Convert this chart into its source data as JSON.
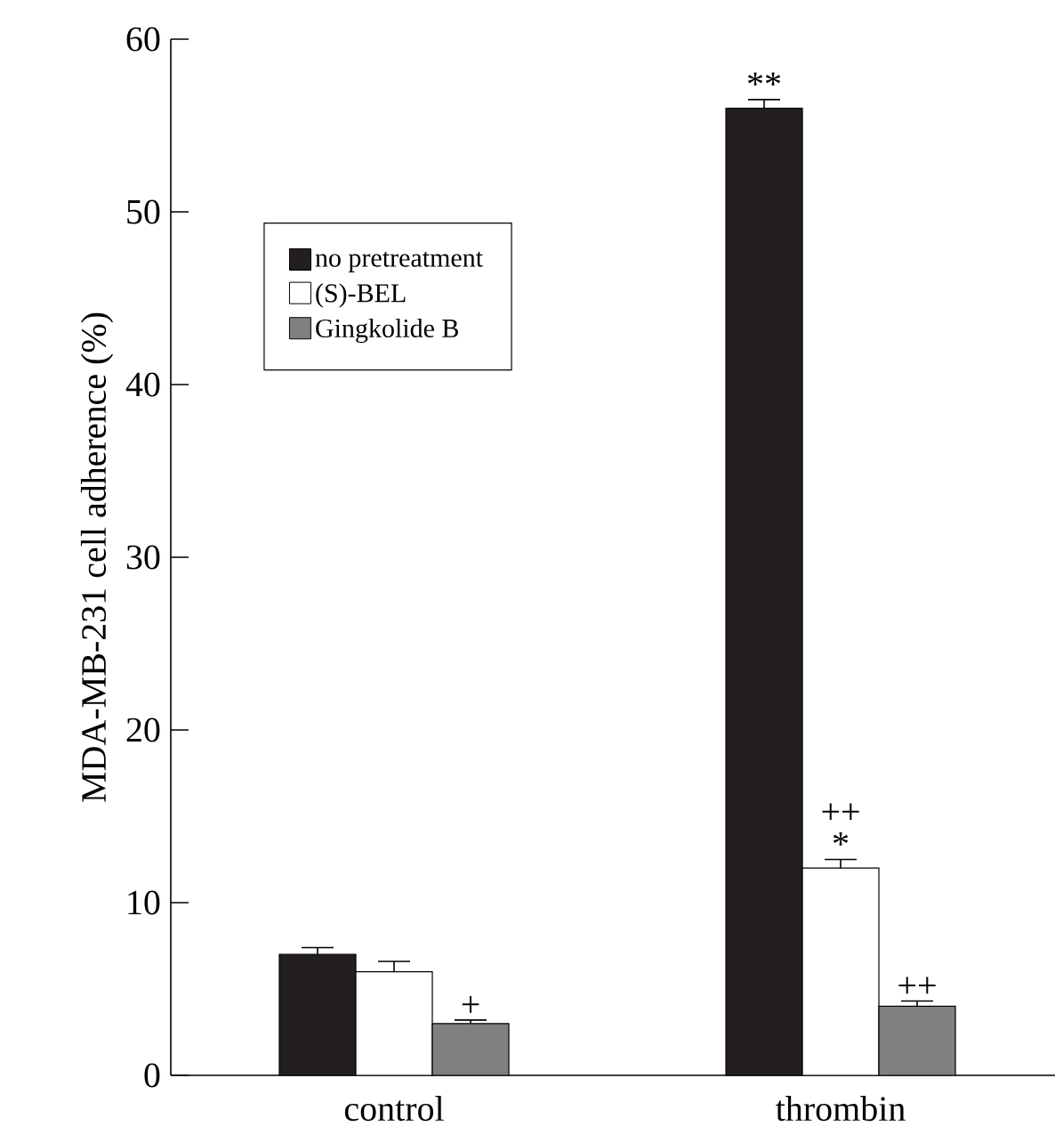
{
  "chart_data": {
    "type": "bar",
    "ylabel": "MDA-MB-231 cell adherence (%)",
    "categories": [
      "control",
      "thrombin"
    ],
    "series": [
      {
        "name": "no pretreatment",
        "color": "#231f20",
        "values": [
          7,
          56
        ],
        "errors": [
          0.4,
          0.5
        ]
      },
      {
        "name": "(S)-BEL",
        "color": "#ffffff",
        "values": [
          6,
          12
        ],
        "errors": [
          0.6,
          0.5
        ]
      },
      {
        "name": "Gingkolide B",
        "color": "#808080",
        "values": [
          3,
          4
        ],
        "errors": [
          0.2,
          0.3
        ]
      }
    ],
    "ylim": [
      0,
      60
    ],
    "yticks": [
      0,
      10,
      20,
      30,
      40,
      50,
      60
    ],
    "legend": "top left",
    "grid": false,
    "annotations": [
      "+",
      "**",
      "*",
      "++",
      "++"
    ]
  }
}
